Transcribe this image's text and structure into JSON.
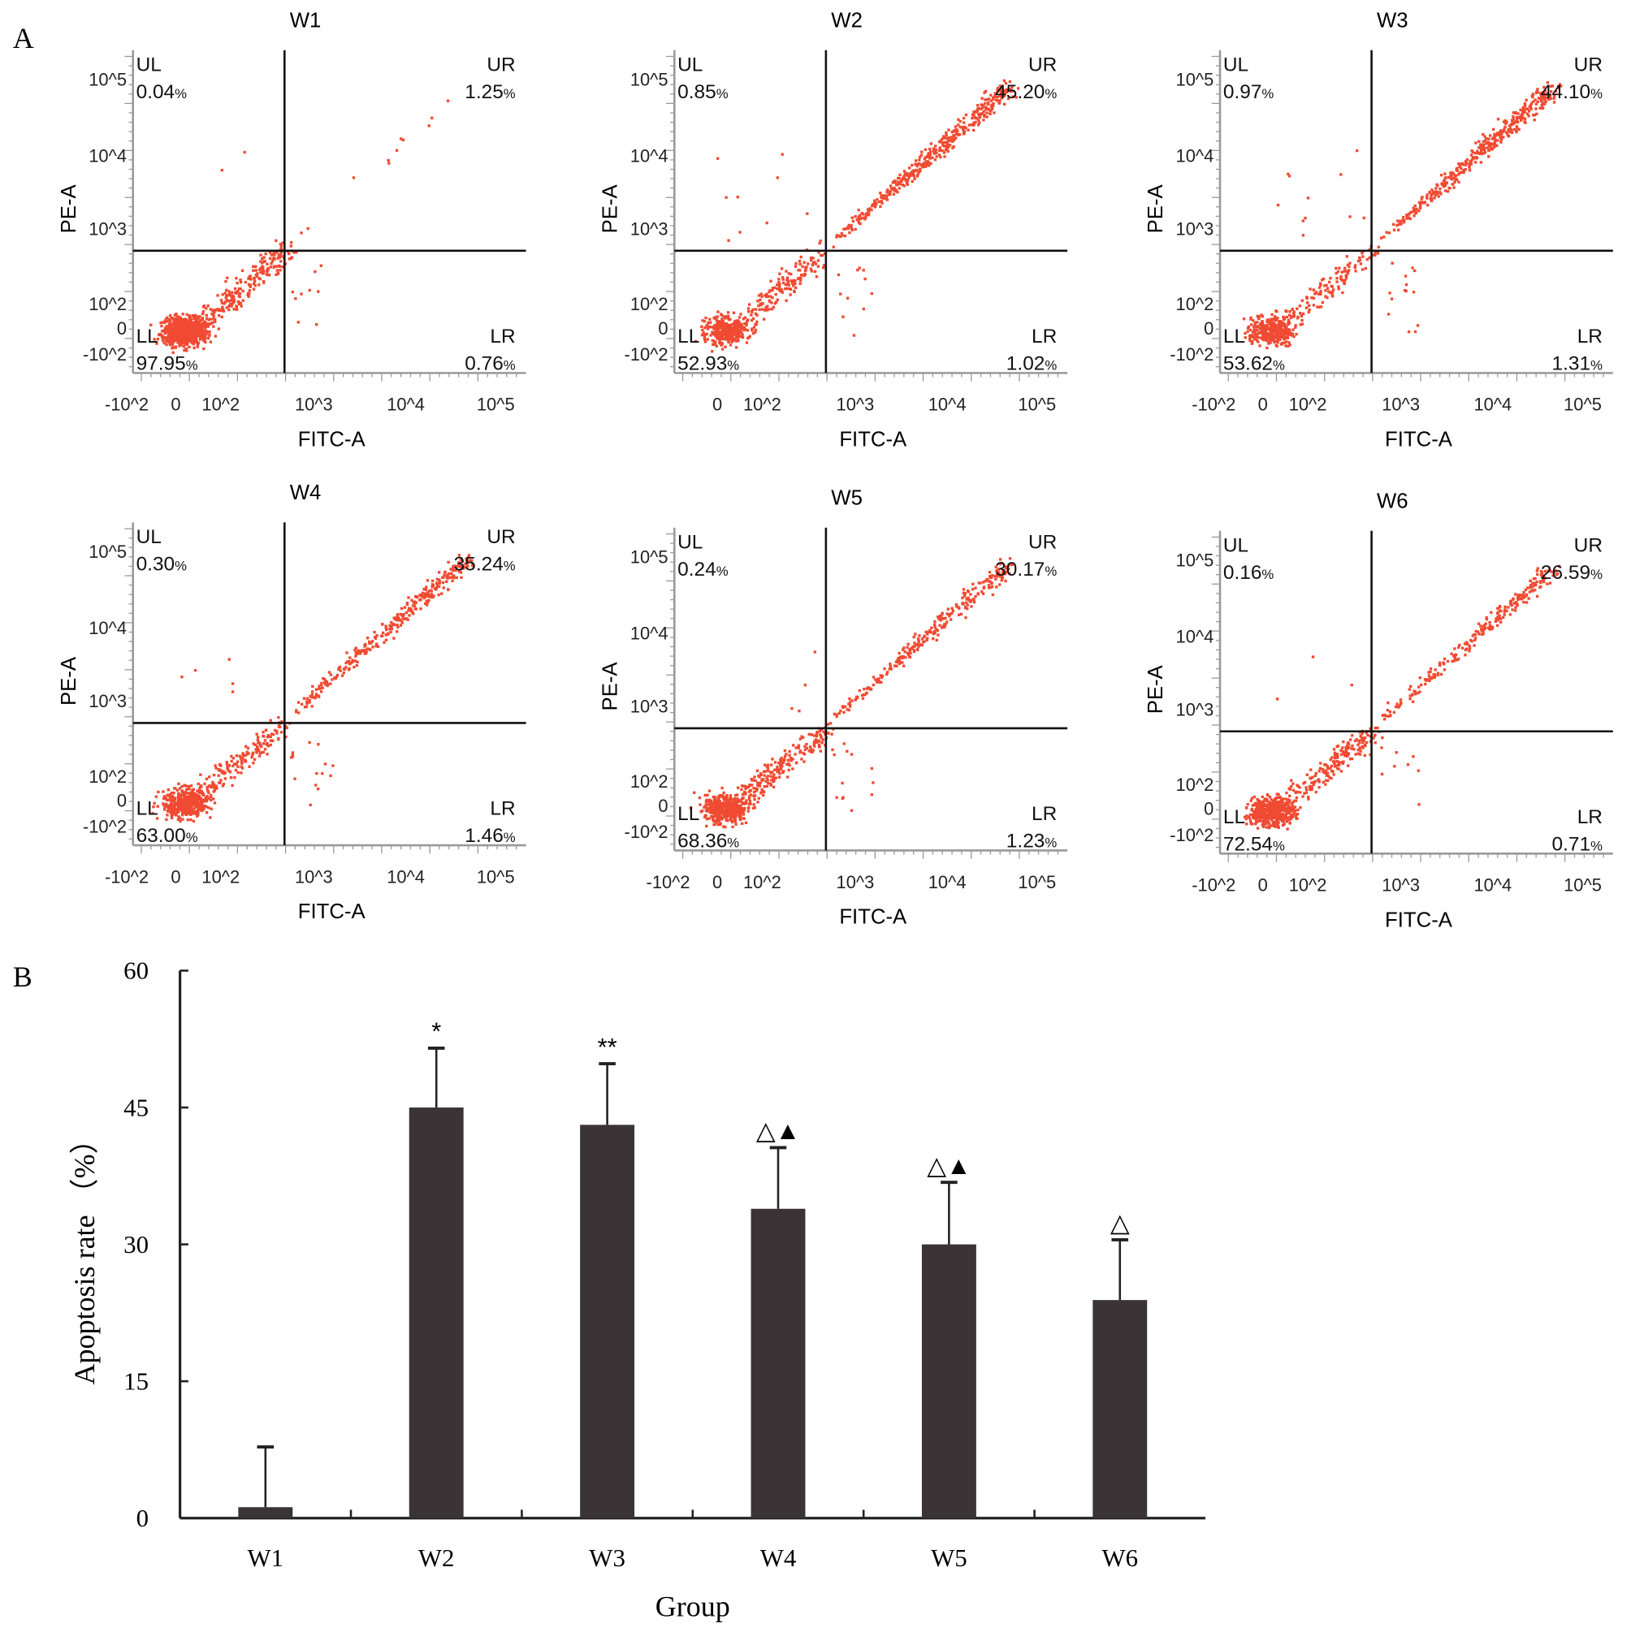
{
  "panel_labels": {
    "a": "A",
    "b": "B"
  },
  "colors": {
    "dot": "#f04a32",
    "bar": "#3a3436",
    "axis": "#222222",
    "gray_axis": "#999999"
  },
  "chart_data": [
    {
      "type": "scatter",
      "title": "W1",
      "xlabel": "FITC-A",
      "ylabel": "PE-A",
      "x_ticks": [
        "-10^2",
        "0",
        "10^2",
        "10^3",
        "10^4",
        "10^5"
      ],
      "y_ticks": [
        "10^5",
        "10^4",
        "10^3",
        "10^2",
        "0",
        "-10^2"
      ],
      "quadrants": {
        "UL": "0.04",
        "UR": "1.25",
        "LL": "97.95",
        "LR": "0.76"
      },
      "quadrant_names": [
        "UL",
        "UR",
        "LL",
        "LR"
      ],
      "unit": "%"
    },
    {
      "type": "scatter",
      "title": "W2",
      "xlabel": "FITC-A",
      "ylabel": "PE-A",
      "x_ticks": [
        "0",
        "10^2",
        "10^3",
        "10^4",
        "10^5"
      ],
      "y_ticks": [
        "10^5",
        "10^4",
        "10^3",
        "10^2",
        "0",
        "-10^2"
      ],
      "quadrants": {
        "UL": "0.85",
        "UR": "45.20",
        "LL": "52.93",
        "LR": "1.02"
      },
      "quadrant_names": [
        "UL",
        "UR",
        "LL",
        "LR"
      ],
      "unit": "%"
    },
    {
      "type": "scatter",
      "title": "W3",
      "xlabel": "FITC-A",
      "ylabel": "PE-A",
      "x_ticks": [
        "-10^2",
        "0",
        "10^2",
        "10^3",
        "10^4",
        "10^5"
      ],
      "y_ticks": [
        "10^5",
        "10^4",
        "10^3",
        "10^2",
        "0",
        "-10^2"
      ],
      "quadrants": {
        "UL": "0.97",
        "UR": "44.10",
        "LL": "53.62",
        "LR": "1.31"
      },
      "quadrant_names": [
        "UL",
        "UR",
        "LL",
        "LR"
      ],
      "unit": "%"
    },
    {
      "type": "scatter",
      "title": "W4",
      "xlabel": "FITC-A",
      "ylabel": "PE-A",
      "x_ticks": [
        "-10^2",
        "0",
        "10^2",
        "10^3",
        "10^4",
        "10^5"
      ],
      "y_ticks": [
        "10^5",
        "10^4",
        "10^3",
        "10^2",
        "0",
        "-10^2"
      ],
      "quadrants": {
        "UL": "0.30",
        "UR": "35.24",
        "LL": "63.00",
        "LR": "1.46"
      },
      "quadrant_names": [
        "UL",
        "UR",
        "LL",
        "LR"
      ],
      "unit": "%"
    },
    {
      "type": "scatter",
      "title": "W5",
      "xlabel": "FITC-A",
      "ylabel": "PE-A",
      "x_ticks": [
        "-10^2",
        "0",
        "10^2",
        "10^3",
        "10^4",
        "10^5"
      ],
      "y_ticks": [
        "10^5",
        "10^4",
        "10^3",
        "10^2",
        "0",
        "-10^2"
      ],
      "quadrants": {
        "UL": "0.24",
        "UR": "30.17",
        "LL": "68.36",
        "LR": "1.23"
      },
      "quadrant_names": [
        "UL",
        "UR",
        "LL",
        "LR"
      ],
      "unit": "%"
    },
    {
      "type": "scatter",
      "title": "W6",
      "xlabel": "FITC-A",
      "ylabel": "PE-A",
      "x_ticks": [
        "-10^2",
        "0",
        "10^2",
        "10^3",
        "10^4",
        "10^5"
      ],
      "y_ticks": [
        "10^5",
        "10^4",
        "10^3",
        "10^2",
        "0",
        "-10^2"
      ],
      "quadrants": {
        "UL": "0.16",
        "UR": "26.59",
        "LL": "72.54",
        "LR": "0.71"
      },
      "quadrant_names": [
        "UL",
        "UR",
        "LL",
        "LR"
      ],
      "unit": "%"
    },
    {
      "type": "bar",
      "categories": [
        "W1",
        "W2",
        "W3",
        "W4",
        "W5",
        "W6"
      ],
      "values": [
        1.2,
        45.0,
        43.1,
        33.9,
        30.0,
        23.9
      ],
      "error_upper": [
        7.8,
        51.5,
        49.8,
        40.6,
        36.8,
        30.5
      ],
      "annotations": [
        "",
        "*",
        "**",
        "△▲",
        "△▲",
        "△"
      ],
      "title": "",
      "xlabel": "Group",
      "ylabel": "Apoptosis rate （%）",
      "ylim": [
        0,
        60
      ],
      "yticks": [
        0,
        15,
        30,
        45,
        60
      ]
    }
  ]
}
